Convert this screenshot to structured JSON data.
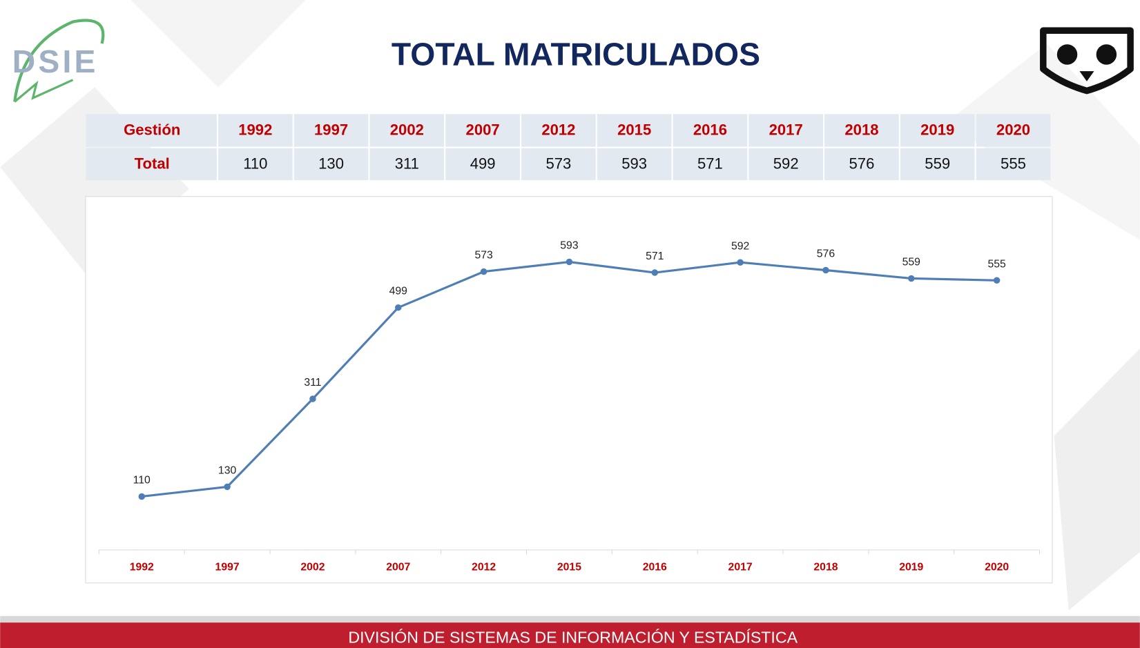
{
  "title": "TOTAL MATRICULADOS",
  "logo_text": "DSIE",
  "table": {
    "row_labels": [
      "Gestión",
      "Total"
    ]
  },
  "chart_data": {
    "type": "line",
    "categories": [
      "1992",
      "1997",
      "2002",
      "2007",
      "2012",
      "2015",
      "2016",
      "2017",
      "2018",
      "2019",
      "2020"
    ],
    "values": [
      110,
      130,
      311,
      499,
      573,
      593,
      571,
      592,
      576,
      559,
      555
    ],
    "color": "#4f7db5",
    "ylim": [
      0,
      700
    ]
  },
  "footer": "DIVISIÓN DE SISTEMAS DE INFORMACIÓN Y ESTADÍSTICA"
}
